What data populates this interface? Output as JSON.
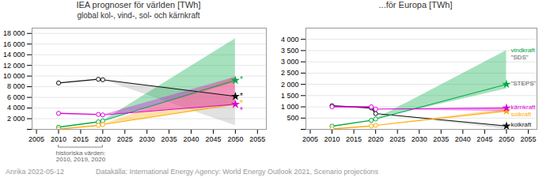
{
  "chart_data": [
    {
      "type": "line",
      "title": "IEA prognoser för världen [TWh]",
      "subtitle": "global kol-, vind-, sol- och kärnkraft",
      "xlim": [
        2004,
        2057
      ],
      "xticks": [
        2005,
        2010,
        2015,
        2020,
        2025,
        2030,
        2035,
        2040,
        2045,
        2050,
        2055
      ],
      "ylim": [
        0,
        19000
      ],
      "yticks": [
        {
          "value": 0,
          "label": ""
        },
        {
          "value": 2000,
          "label": "2 000"
        },
        {
          "value": 4000,
          "label": "4 000"
        },
        {
          "value": 6000,
          "label": "6 000"
        },
        {
          "value": 8000,
          "label": "8 000"
        },
        {
          "value": 10000,
          "label": "10 000"
        },
        {
          "value": 12000,
          "label": "12 000"
        },
        {
          "value": 14000,
          "label": "14 000"
        },
        {
          "value": 16000,
          "label": "16 000"
        },
        {
          "value": 18000,
          "label": "18 000"
        }
      ],
      "grid": true,
      "series": [
        {
          "color": "#111111",
          "marker": "circle",
          "x": [
            2010,
            2019,
            2020
          ],
          "values": [
            8700,
            9400,
            9300
          ],
          "projection": {
            "x": [
              2020,
              2050
            ],
            "values": [
              9300,
              6200
            ],
            "marker": "star"
          },
          "band": {
            "x": [
              2020,
              2050
            ],
            "low": [
              9300,
              700
            ],
            "high": [
              9300,
              6200
            ],
            "color": "#aaaaaa"
          }
        },
        {
          "color": "#00aa44",
          "marker": "circle",
          "x": [
            2010,
            2019,
            2020
          ],
          "values": [
            400,
            1400,
            1600
          ],
          "projection": {
            "x": [
              2020,
              2050
            ],
            "values": [
              1600,
              9200
            ],
            "marker": "star"
          },
          "band": {
            "x": [
              2020,
              2050
            ],
            "low": [
              1600,
              8800
            ],
            "high": [
              1600,
              17000
            ]
          }
        },
        {
          "color": "#ffaa00",
          "marker": "circle",
          "x": [
            2010,
            2019,
            2020
          ],
          "values": [
            50,
            750,
            900
          ],
          "projection": {
            "x": [
              2020,
              2050
            ],
            "values": [
              900,
              4700
            ],
            "marker": "star"
          },
          "band": {
            "x": [
              2020,
              2050
            ],
            "low": [
              900,
              4500
            ],
            "high": [
              900,
              9800
            ]
          }
        },
        {
          "color": "#dd00dd",
          "marker": "circle",
          "x": [
            2010,
            2019,
            2020
          ],
          "values": [
            3000,
            2800,
            2700
          ],
          "projection": {
            "x": [
              2020,
              2050
            ],
            "values": [
              2700,
              4700
            ],
            "marker": "star"
          },
          "band": {
            "x": [
              2020,
              2050
            ],
            "low": [
              2700,
              4600
            ],
            "high": [
              2700,
              9800
            ]
          }
        }
      ],
      "annotations": [
        {
          "text": "*",
          "x": 2051,
          "y": 6200,
          "color": "#111111"
        },
        {
          "text": "*",
          "x": 2051,
          "y": 9300,
          "color": "#00aa44"
        },
        {
          "text": "*",
          "x": 2051,
          "y": 4800,
          "color": "#ffaa00"
        },
        {
          "text": "*",
          "x": 2051,
          "y": 4800,
          "color": "#dd00dd"
        },
        {
          "text": "historiska värden:\n2010, 2019, 2020",
          "x": 2015,
          "bracket": [
            2010,
            2020
          ],
          "color": "#666666"
        }
      ]
    },
    {
      "type": "line",
      "title": "...för Europa [TWh]",
      "xlim": [
        2004,
        2057
      ],
      "xticks": [
        2005,
        2010,
        2015,
        2020,
        2025,
        2030,
        2035,
        2040,
        2045,
        2050,
        2055
      ],
      "ylim": [
        0,
        4500
      ],
      "yticks": [
        {
          "value": 0,
          "label": ""
        },
        500,
        {
          "value": 1000,
          "label": "1 000"
        },
        {
          "value": 1500,
          "label": "1 500"
        },
        {
          "value": 2000,
          "label": "2 000"
        },
        {
          "value": 2500,
          "label": "2 500"
        },
        {
          "value": 3000,
          "label": "3 000"
        },
        {
          "value": 3500,
          "label": "3 500"
        },
        {
          "value": 4000,
          "label": "4 000"
        }
      ],
      "grid": true,
      "series": [
        {
          "color": "#111111",
          "marker": "circle",
          "x": [
            2010,
            2019,
            2020
          ],
          "values": [
            1050,
            950,
            700
          ],
          "projection": {
            "x": [
              2020,
              2050
            ],
            "values": [
              700,
              150
            ],
            "marker": "star"
          },
          "band": {
            "x": [
              2020,
              2050
            ],
            "low": [
              700,
              0
            ],
            "high": [
              700,
              150
            ],
            "color": "#aaaaaa"
          }
        },
        {
          "color": "#00aa44",
          "marker": "circle",
          "x": [
            2010,
            2019,
            2020
          ],
          "values": [
            140,
            400,
            460
          ],
          "projection": {
            "x": [
              2020,
              2050
            ],
            "values": [
              460,
              2000
            ],
            "marker": "star"
          },
          "band": {
            "x": [
              2020,
              2050
            ],
            "low": [
              460,
              1800
            ],
            "high": [
              460,
              3500
            ]
          }
        },
        {
          "color": "#ffaa00",
          "marker": "circle",
          "x": [
            2010,
            2019,
            2020
          ],
          "values": [
            20,
            150,
            175
          ],
          "projection": {
            "x": [
              2020,
              2050
            ],
            "values": [
              175,
              820
            ],
            "marker": "star"
          },
          "band": {
            "x": [
              2020,
              2050
            ],
            "low": [
              175,
              750
            ],
            "high": [
              175,
              900
            ]
          }
        },
        {
          "color": "#dd00dd",
          "marker": "circle",
          "x": [
            2010,
            2019,
            2020
          ],
          "values": [
            1000,
            1000,
            900
          ],
          "projection": {
            "x": [
              2020,
              2050
            ],
            "values": [
              900,
              950
            ],
            "marker": "star"
          },
          "band": {
            "x": [
              2020,
              2050
            ],
            "low": [
              900,
              780
            ],
            "high": [
              900,
              950
            ]
          }
        }
      ],
      "annotations": [
        {
          "text": "\"SDS\"",
          "x": 2051,
          "y": 3500,
          "color": "#555555"
        },
        {
          "text": "\"STEPS\"",
          "x": 2051,
          "y": 2050,
          "color": "#555555"
        },
        {
          "text": "kärnkraft",
          "x": 2051,
          "y": 980,
          "color": "#dd00dd"
        },
        {
          "text": "solkraft",
          "x": 2051,
          "y": 820,
          "color": "#ffaa00"
        },
        {
          "text": "kolkraft",
          "x": 2051,
          "y": 200,
          "color": "#111111"
        },
        {
          "text": "vindkraft",
          "x": 2051,
          "y": 3530,
          "color": "#00aa44"
        }
      ]
    }
  ],
  "footnotes": [
    "Anrika 2022-05-12",
    "Datakälla: International Energy Agency: World Energy Outlook 2021, Scenario projections"
  ]
}
